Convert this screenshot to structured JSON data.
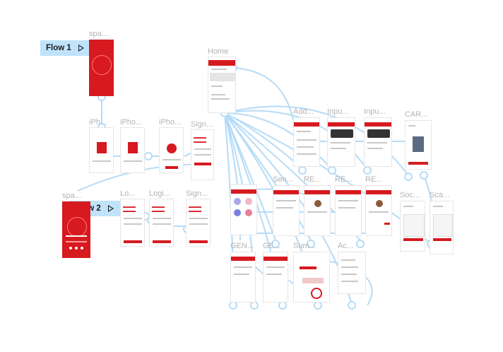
{
  "colors": {
    "brand_red": "#d71920",
    "connector": "#b5dcf7",
    "connector_handle": "#ffffff",
    "flow_label_bg": "#bfe3fb",
    "frame_label": "#b3b3b3"
  },
  "flows": [
    {
      "label": "Flow 1",
      "icon": "play-icon"
    },
    {
      "label": "Flow 2",
      "icon": "play-icon"
    }
  ],
  "frames": {
    "splash1": "spa...",
    "splash2": "spa...",
    "home": "Home",
    "iphone1": "iPh...",
    "iphone2": "iPho...",
    "iphone3": "iPho...",
    "signup1": "Sign...",
    "login1": "Lo...",
    "login2": "Logi...",
    "signup2": "Sign...",
    "add": "Add...",
    "input1": "Inpu...",
    "input2": "Inpu...",
    "card": "CAR...",
    "send": "Sen...",
    "rec1": "RE...",
    "rec2": "RE...",
    "rec3": "RE...",
    "soc": "Soc...",
    "sca": "Sca...",
    "gen1": "GEN...",
    "gen2": "GE...",
    "sum": "Sum...",
    "acc": "Ac..."
  }
}
